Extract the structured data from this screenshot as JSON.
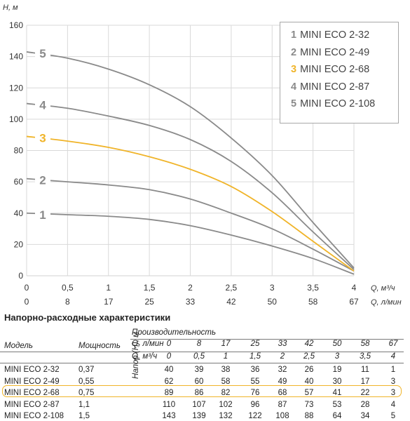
{
  "chart_data": {
    "type": "line",
    "ylabel": "H, м",
    "xlabel": "Q, м³/ч",
    "xlabel2": "Q, л/мин",
    "ylim": [
      0,
      160
    ],
    "xlim": [
      0,
      4
    ],
    "yticks": [
      "0",
      "20",
      "40",
      "60",
      "80",
      "100",
      "120",
      "140",
      "160"
    ],
    "xticks": [
      "0",
      "0,5",
      "1",
      "1,5",
      "2",
      "2,5",
      "3",
      "3,5",
      "4"
    ],
    "xticks2": [
      "0",
      "8",
      "17",
      "25",
      "33",
      "42",
      "50",
      "58",
      "67"
    ],
    "grid": true,
    "legend_position": "top-right",
    "x": [
      0,
      0.5,
      1,
      1.5,
      2,
      2.5,
      3,
      3.5,
      4
    ],
    "series": [
      {
        "name": "MINI ECO 2-32",
        "label": "1",
        "values": [
          40,
          39,
          38,
          36,
          32,
          26,
          19,
          11,
          1
        ],
        "color": "#8a8a8a"
      },
      {
        "name": "MINI ECO 2-49",
        "label": "2",
        "values": [
          62,
          60,
          58,
          55,
          49,
          40,
          30,
          17,
          3
        ],
        "color": "#8a8a8a"
      },
      {
        "name": "MINI ECO 2-68",
        "label": "3",
        "values": [
          89,
          86,
          82,
          76,
          68,
          57,
          41,
          22,
          3
        ],
        "color": "#f0b429"
      },
      {
        "name": "MINI ECO 2-87",
        "label": "4",
        "values": [
          110,
          107,
          102,
          96,
          87,
          73,
          53,
          28,
          4
        ],
        "color": "#8a8a8a"
      },
      {
        "name": "MINI ECO 2-108",
        "label": "5",
        "values": [
          143,
          139,
          132,
          122,
          108,
          88,
          64,
          34,
          5
        ],
        "color": "#8a8a8a"
      }
    ]
  },
  "legend": [
    {
      "num": "1",
      "name": "MINI ECO 2-32"
    },
    {
      "num": "2",
      "name": "MINI ECO 2-49"
    },
    {
      "num": "3",
      "name": "MINI ECO 2-68"
    },
    {
      "num": "4",
      "name": "MINI ECO 2-87"
    },
    {
      "num": "5",
      "name": "MINI ECO 2-108"
    }
  ],
  "colors": {
    "accent": "#f0b429",
    "curve": "#8a8a8a",
    "grid": "#d9d9d9"
  },
  "table": {
    "title": "Напорно-расходные характеристики",
    "header_model": "Модель",
    "header_power": "Мощность",
    "header_perf": "Производительность",
    "unit_lmin": "Q, л/мин",
    "unit_m3h": "Q, м³/ч",
    "head_label": "Напор (H), м",
    "lmin": [
      "0",
      "8",
      "17",
      "25",
      "33",
      "42",
      "50",
      "58",
      "67"
    ],
    "m3h": [
      "0",
      "0,5",
      "1",
      "1,5",
      "2",
      "2,5",
      "3",
      "3,5",
      "4"
    ],
    "rows": [
      {
        "model": "MINI ECO 2-32",
        "power": "0,37",
        "values": [
          "40",
          "39",
          "38",
          "36",
          "32",
          "26",
          "19",
          "11",
          "1"
        ]
      },
      {
        "model": "MINI ECO 2-49",
        "power": "0,55",
        "values": [
          "62",
          "60",
          "58",
          "55",
          "49",
          "40",
          "30",
          "17",
          "3"
        ]
      },
      {
        "model": "MINI ECO 2-68",
        "power": "0,75",
        "values": [
          "89",
          "86",
          "82",
          "76",
          "68",
          "57",
          "41",
          "22",
          "3"
        ]
      },
      {
        "model": "MINI ECO 2-87",
        "power": "1,1",
        "values": [
          "110",
          "107",
          "102",
          "96",
          "87",
          "73",
          "53",
          "28",
          "4"
        ]
      },
      {
        "model": "MINI ECO 2-108",
        "power": "1,5",
        "values": [
          "143",
          "139",
          "132",
          "122",
          "108",
          "88",
          "64",
          "34",
          "5"
        ]
      }
    ]
  }
}
